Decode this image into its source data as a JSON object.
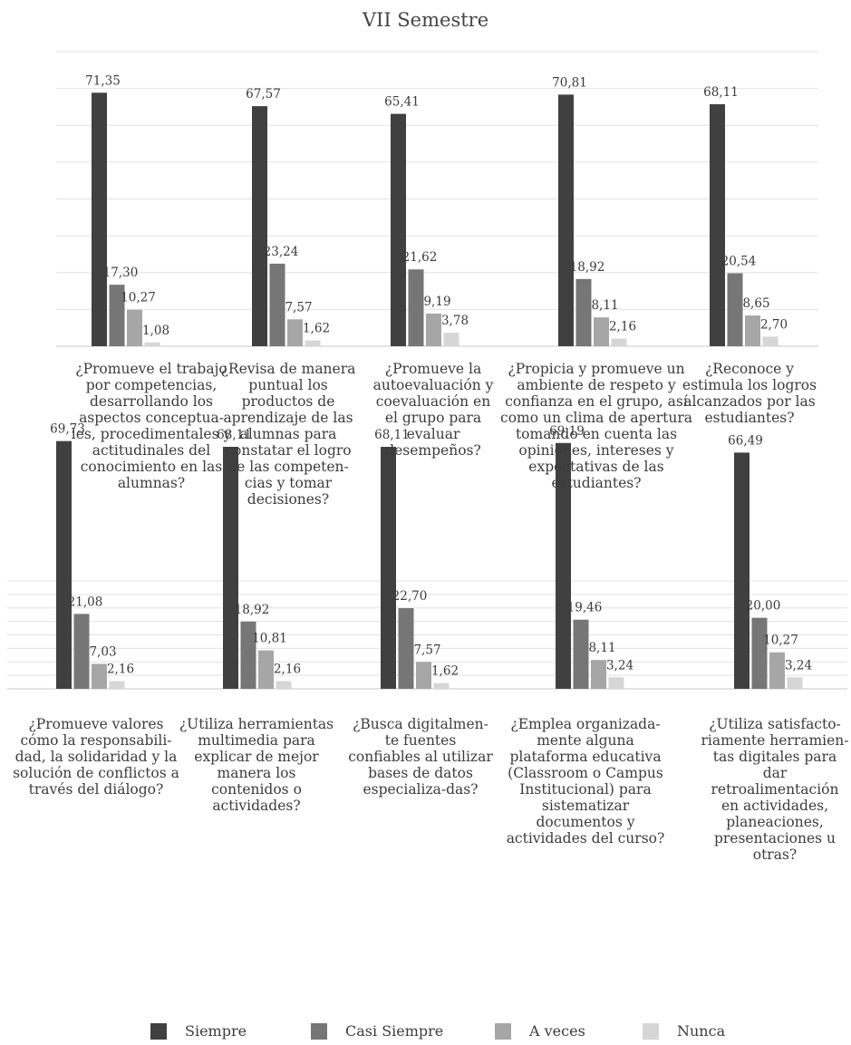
{
  "chart_data": [
    {
      "type": "bar",
      "title": "VII Semestre",
      "categories": [
        "¿Promueve el trabajo por competencias, desarrollando los aspectos conceptua-les, procedimentales y actitudinales del conocimiento en las alumnas?",
        "¿Revisa de manera puntual los productos de aprendizaje de las alumnas para constatar el logro de las competen-cias y tomar decisiones?",
        "¿Promueve la autoevaluación y coevaluación en el grupo para evaluar desempeños?",
        "¿Propicia y promueve un ambiente de respeto y confianza en el grupo, así como un clima de apertura tomando en cuenta las opiniones, intereses y expectativas de las estudiantes?",
        "¿Reconoce y estimula los logros alcanzados por las estudiantes?"
      ],
      "series": [
        {
          "name": "Siempre",
          "values": [
            71.35,
            67.57,
            65.41,
            70.81,
            68.11
          ],
          "labels": [
            "71,35",
            "67,57",
            "65,41",
            "70,81",
            "68,11"
          ]
        },
        {
          "name": "Casi Siempre",
          "values": [
            17.3,
            23.24,
            21.62,
            18.92,
            20.54
          ],
          "labels": [
            "17,30",
            "23,24",
            "21,62",
            "18,92",
            "20,54"
          ]
        },
        {
          "name": "A veces",
          "values": [
            10.27,
            7.57,
            9.19,
            8.11,
            8.65
          ],
          "labels": [
            "10,27",
            "7,57",
            "9,19",
            "8,11",
            "8,65"
          ]
        },
        {
          "name": "Nunca",
          "values": [
            1.08,
            1.62,
            3.78,
            2.16,
            2.7
          ],
          "labels": [
            "1,08",
            "1,62",
            "3,78",
            "2,16",
            "2,70"
          ]
        }
      ],
      "ylim": [
        0,
        80
      ],
      "grid": true
    },
    {
      "type": "bar",
      "title": "",
      "categories": [
        "¿Promueve valores cómo la responsabili-dad, la solidaridad y la solución de conflictos a través del diálogo?",
        "¿Utiliza herramientas multimedia para explicar de mejor manera los contenidos o actividades?",
        "¿Busca digitalmen-te fuentes confiables al utilizar bases de datos especializa-das?",
        "¿Emplea organizada-mente alguna plataforma educativa (Classroom o Campus Institucional) para sistematizar documentos y actividades del curso?",
        "¿Utiliza satisfacto-riamente herramien-tas digitales para dar retroalimentación en actividades, planeaciones, presentaciones u otras?"
      ],
      "series": [
        {
          "name": "Siempre",
          "values": [
            69.73,
            68.11,
            68.11,
            69.19,
            66.49
          ],
          "labels": [
            "69,73",
            "68,11",
            "68,11",
            "69,19",
            "66,49"
          ]
        },
        {
          "name": "Casi Siempre",
          "values": [
            21.08,
            18.92,
            22.7,
            19.46,
            20.0
          ],
          "labels": [
            "21,08",
            "18,92",
            "22,70",
            "19,46",
            "20,00"
          ]
        },
        {
          "name": "A veces",
          "values": [
            7.03,
            10.81,
            7.57,
            8.11,
            10.27
          ],
          "labels": [
            "7,03",
            "10,81",
            "7,57",
            "8,11",
            "10,27"
          ]
        },
        {
          "name": "Nunca",
          "values": [
            2.16,
            2.16,
            1.62,
            3.24,
            3.24
          ],
          "labels": [
            "2,16",
            "2,16",
            "1,62",
            "3,24",
            "3,24"
          ]
        }
      ],
      "ylim": [
        0,
        80
      ],
      "grid": true
    }
  ],
  "legend": [
    {
      "label": "Siempre",
      "color": "#404040"
    },
    {
      "label": "Casi Siempre",
      "color": "#767676"
    },
    {
      "label": "A veces",
      "color": "#a6a6a6"
    },
    {
      "label": "Nunca",
      "color": "#d6d6d6"
    }
  ]
}
